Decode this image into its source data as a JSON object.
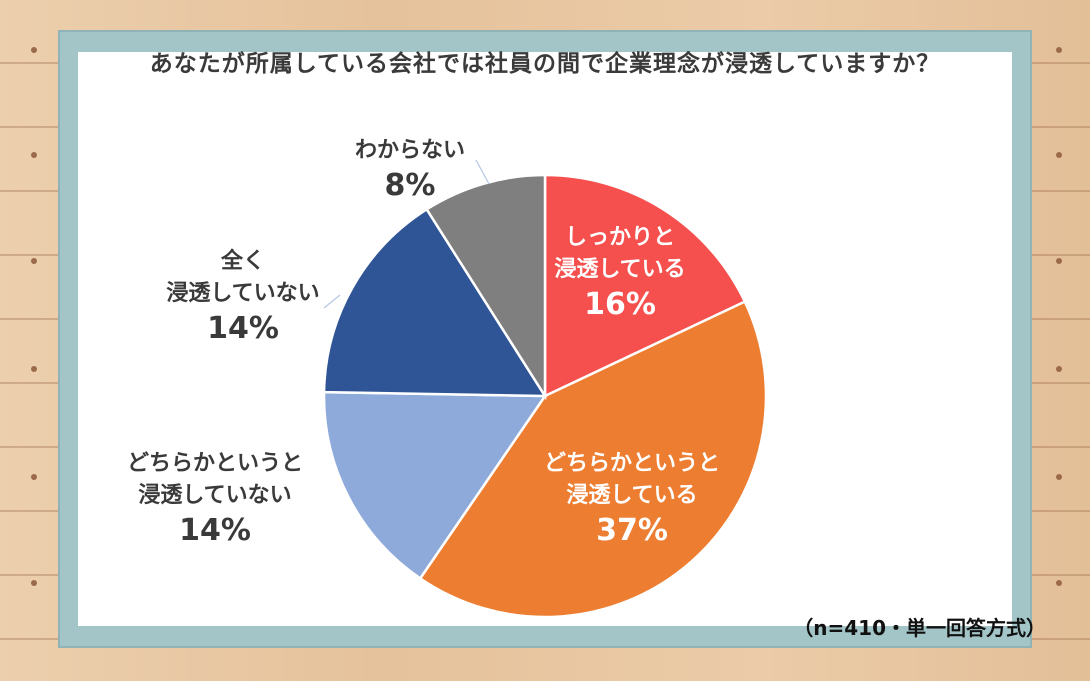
{
  "chart_data": {
    "type": "pie",
    "title": "あなたが所属している会社では社員の間で企業理念が浸透していますか？",
    "note": "（n=410・単一回答方式）",
    "slices": [
      {
        "lines": [
          "しっかりと",
          "浸透している"
        ],
        "percent_label": "16%",
        "value": 16,
        "color": "#f5504e"
      },
      {
        "lines": [
          "どちらかというと",
          "浸透している"
        ],
        "percent_label": "37%",
        "value": 37,
        "color": "#ed7d31"
      },
      {
        "lines": [
          "どちらかというと",
          "浸透していない"
        ],
        "percent_label": "14%",
        "value": 14,
        "color": "#8eaadb"
      },
      {
        "lines": [
          "全く",
          "浸透していない"
        ],
        "percent_label": "14%",
        "value": 14,
        "color": "#2f5597"
      },
      {
        "lines": [
          "わからない"
        ],
        "percent_label": "8%",
        "value": 8,
        "color": "#7f7f7f"
      }
    ],
    "start": "12 o'clock",
    "direction": "clockwise"
  }
}
